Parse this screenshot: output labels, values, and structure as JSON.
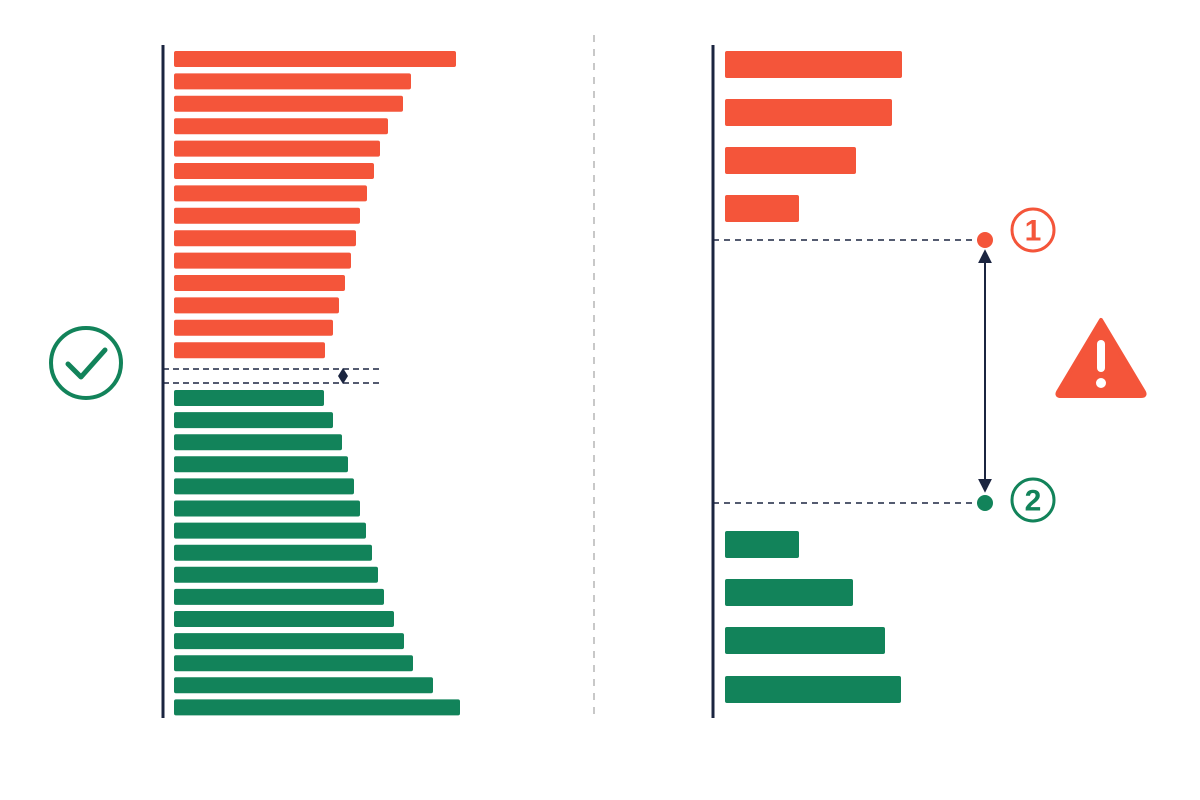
{
  "markers": [
    {
      "label": "1"
    },
    {
      "label": "2"
    }
  ]
}
